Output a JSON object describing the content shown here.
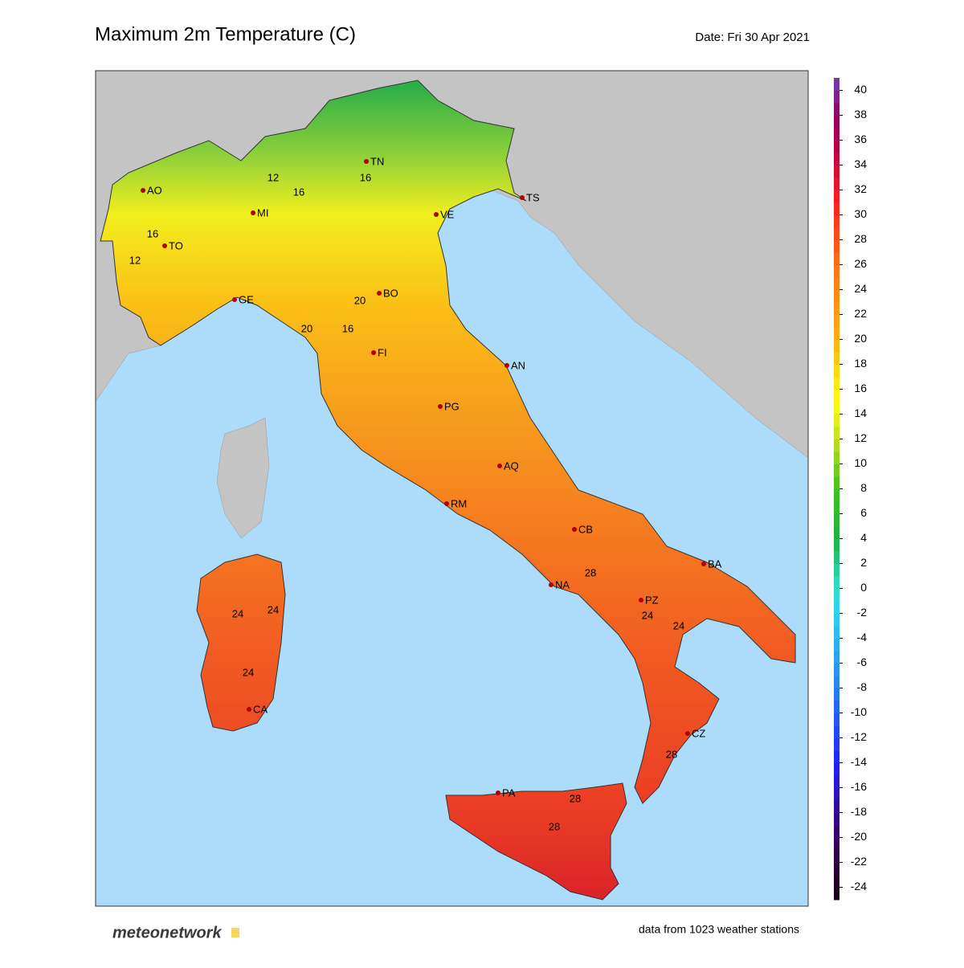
{
  "title": "Maximum 2m Temperature (C)",
  "date": "Date: Fri 30 Apr 2021",
  "colorbar": {
    "lim": [
      -25,
      41
    ],
    "ticks": [
      40,
      38,
      36,
      34,
      32,
      30,
      28,
      26,
      24,
      22,
      20,
      18,
      16,
      14,
      12,
      10,
      8,
      6,
      4,
      2,
      0,
      -2,
      -4,
      -6,
      -8,
      -10,
      -12,
      -14,
      -16,
      -18,
      -20,
      -22,
      -24
    ]
  },
  "cities": [
    "AO",
    "MI",
    "TO",
    "TN",
    "TS",
    "VE",
    "GE",
    "BO",
    "FI",
    "AN",
    "PG",
    "AQ",
    "RM",
    "CB",
    "BA",
    "NA",
    "PZ",
    "CA",
    "CZ",
    "PA"
  ],
  "contour_labels": [
    12,
    16,
    16,
    12,
    16,
    20,
    20,
    16,
    24,
    24,
    28,
    24,
    24,
    24,
    28,
    28,
    28
  ],
  "logo": "meteonetwork",
  "footer": "data from 1023 weather stations"
}
